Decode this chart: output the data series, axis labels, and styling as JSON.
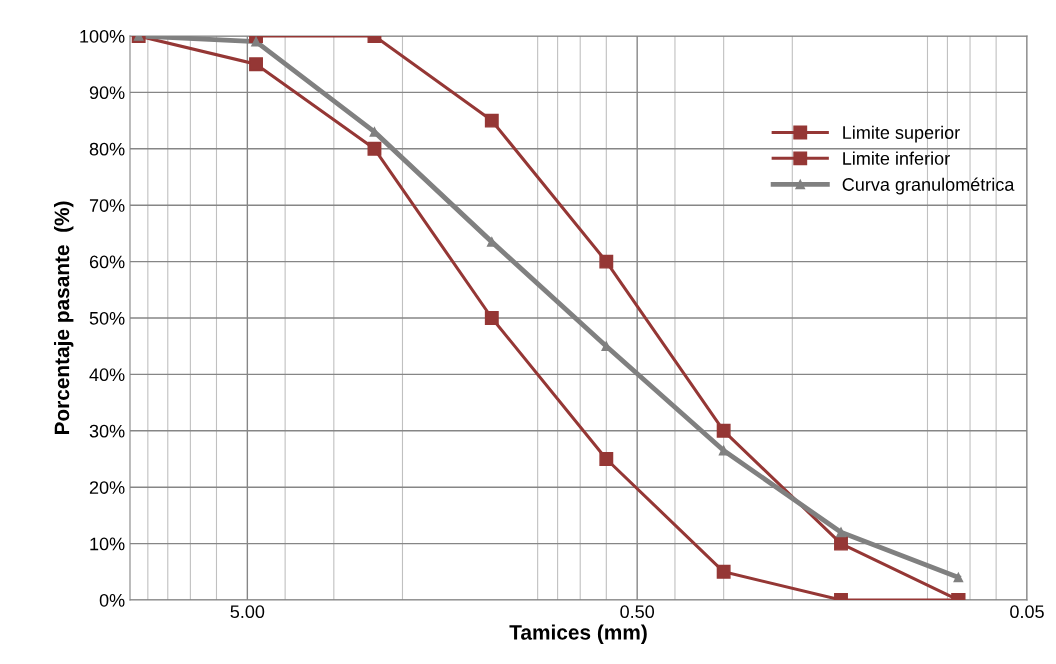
{
  "chart_data": {
    "type": "line",
    "xlabel": "Tamices (mm)",
    "ylabel": "Porcentaje pasante  (%)",
    "x": [
      9.5,
      4.75,
      2.36,
      1.18,
      0.6,
      0.3,
      0.15,
      0.075
    ],
    "series": [
      {
        "name": "Limite superior",
        "color": "#953735",
        "marker": "square",
        "values": [
          null,
          100,
          100,
          85,
          60,
          30,
          10,
          0
        ]
      },
      {
        "name": "Limite inferior",
        "color": "#953735",
        "marker": "square",
        "values": [
          100,
          95,
          80,
          50,
          25,
          5,
          0,
          0
        ]
      },
      {
        "name": "Curva granulométrica",
        "color": "#808080",
        "marker": "triangle",
        "values": [
          100,
          99,
          83,
          63.5,
          45,
          26.5,
          12,
          4
        ]
      }
    ],
    "log": "x",
    "xlim": [
      10,
      0.05
    ],
    "xticks": [
      {
        "value": 5,
        "label": "5.00"
      },
      {
        "value": 0.5,
        "label": "0.50"
      },
      {
        "value": 0.05,
        "label": "0.05"
      }
    ],
    "ylim": [
      0,
      100
    ],
    "yticks": [
      {
        "value": 0,
        "label": "0%"
      },
      {
        "value": 10,
        "label": "10%"
      },
      {
        "value": 20,
        "label": "20%"
      },
      {
        "value": 30,
        "label": "30%"
      },
      {
        "value": 40,
        "label": "40%"
      },
      {
        "value": 50,
        "label": "50%"
      },
      {
        "value": 60,
        "label": "60%"
      },
      {
        "value": 70,
        "label": "70%"
      },
      {
        "value": 80,
        "label": "80%"
      },
      {
        "value": 90,
        "label": "90%"
      },
      {
        "value": 100,
        "label": "100%"
      }
    ],
    "grid": true,
    "legend": "right",
    "line_style": "solid"
  }
}
